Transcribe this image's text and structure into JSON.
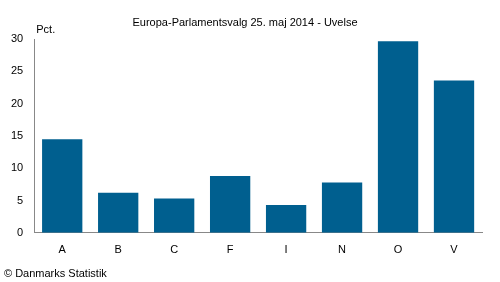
{
  "chart_data": {
    "type": "bar",
    "title": "Europa-Parlamentsvalg 25. maj 2014 - Uvelse",
    "y_label": "Pct.",
    "annotation": "© Danmarks Statistik",
    "categories": [
      "A",
      "B",
      "C",
      "F",
      "I",
      "N",
      "O",
      "V"
    ],
    "values": [
      14.5,
      6.2,
      5.3,
      8.8,
      4.3,
      7.8,
      29.7,
      23.6
    ],
    "color": "#005f8f",
    "ylim": [
      0,
      30
    ],
    "yticks": [
      0,
      5,
      10,
      15,
      20,
      25,
      30
    ],
    "grid": false
  }
}
